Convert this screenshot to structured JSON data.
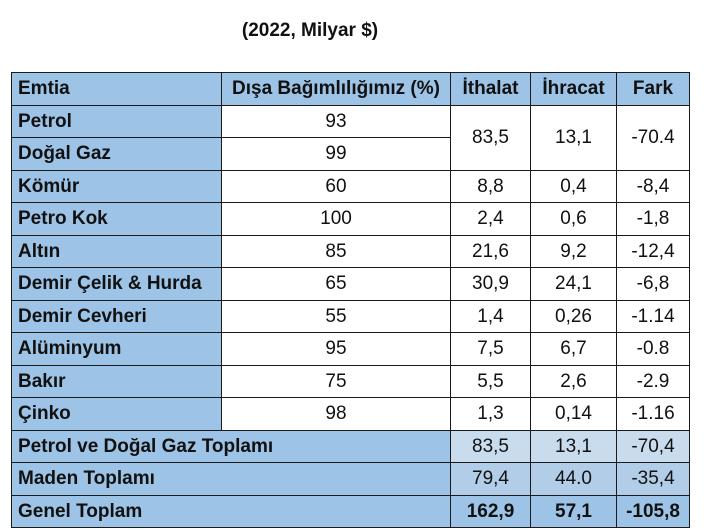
{
  "subtitle": "(2022, Milyar $)",
  "headers": [
    "Emtia",
    "Dışa Bağımlılığımız (%)",
    "İthalat",
    "İhracat",
    "Fark"
  ],
  "rows": [
    {
      "emtia": "Petrol",
      "bagimlilik": "93"
    },
    {
      "emtia": "Doğal Gaz",
      "bagimlilik": "99"
    },
    {
      "emtia": "Kömür",
      "bagimlilik": "60",
      "ithalat": "8,8",
      "ihracat": "0,4",
      "fark": "-8,4"
    },
    {
      "emtia": "Petro Kok",
      "bagimlilik": "100",
      "ithalat": "2,4",
      "ihracat": "0,6",
      "fark": "-1,8"
    },
    {
      "emtia": "Altın",
      "bagimlilik": "85",
      "ithalat": "21,6",
      "ihracat": "9,2",
      "fark": "-12,4"
    },
    {
      "emtia": "Demir Çelik & Hurda",
      "bagimlilik": "65",
      "ithalat": "30,9",
      "ihracat": "24,1",
      "fark": "-6,8"
    },
    {
      "emtia": "Demir Cevheri",
      "bagimlilik": "55",
      "ithalat": "1,4",
      "ihracat": "0,26",
      "fark": "-1.14"
    },
    {
      "emtia": "Alüminyum",
      "bagimlilik": "95",
      "ithalat": "7,5",
      "ihracat": "6,7",
      "fark": "-0.8"
    },
    {
      "emtia": "Bakır",
      "bagimlilik": "75",
      "ithalat": "5,5",
      "ihracat": "2,6",
      "fark": "-2.9"
    },
    {
      "emtia": "Çinko",
      "bagimlilik": "98",
      "ithalat": "1,3",
      "ihracat": "0,14",
      "fark": "-1.16"
    }
  ],
  "petrol_dogalgaz_merged": {
    "ithalat": "83,5",
    "ihracat": "13,1",
    "fark": "-70.4"
  },
  "totals": [
    {
      "label": "Petrol ve Doğal Gaz Toplamı",
      "ithalat": "83,5",
      "ihracat": "13,1",
      "fark": "-70,4"
    },
    {
      "label": "Maden Toplamı",
      "ithalat": "79,4",
      "ihracat": "44.0",
      "fark": "-35,4"
    },
    {
      "label": "Genel Toplam",
      "ithalat": "162,9",
      "ihracat": "57,1",
      "fark": "-105,8"
    }
  ]
}
